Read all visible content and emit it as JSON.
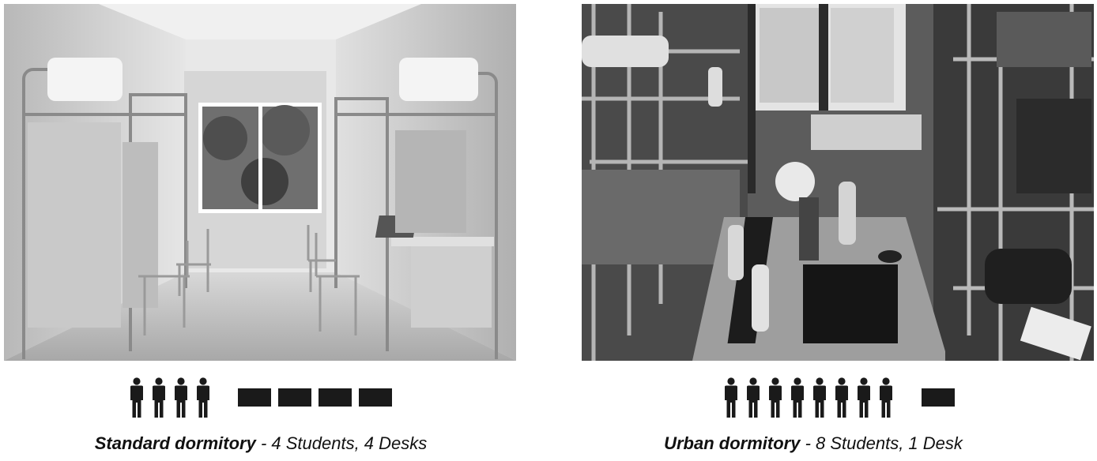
{
  "panels": [
    {
      "title": "Standard dormitory",
      "detail": " - 4 Students, 4 Desks",
      "students": 4,
      "desks": 4,
      "photo": "standard-dormitory-photo"
    },
    {
      "title": "Urban dormitory",
      "detail": " - 8 Students, 1 Desk",
      "students": 8,
      "desks": 1,
      "photo": "urban-dormitory-photo"
    }
  ],
  "icons": {
    "student": "person-icon",
    "desk": "desk-icon"
  },
  "colors": {
    "icon": "#1a1a1a",
    "background": "#ffffff"
  }
}
